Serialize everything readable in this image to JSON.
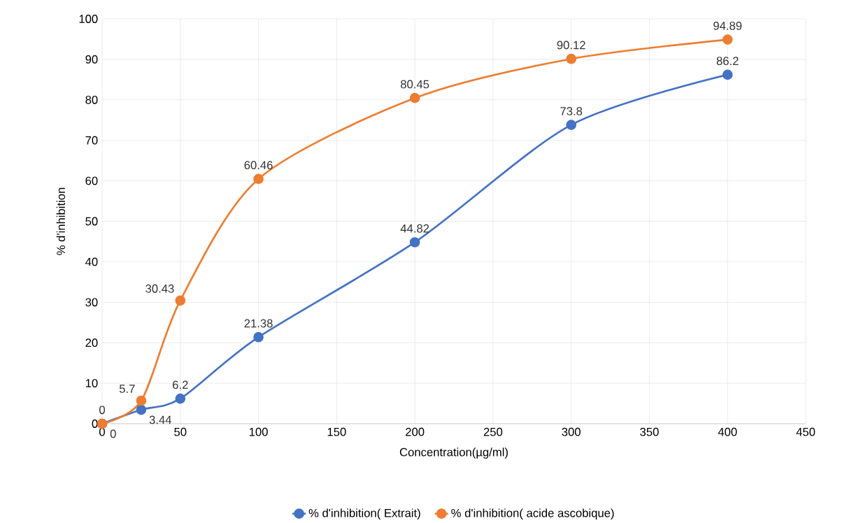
{
  "chart_data": {
    "type": "line",
    "xlabel": "Concentration(µg/ml)",
    "ylabel": "% d'inhibition",
    "x": [
      0,
      25,
      50,
      100,
      200,
      300,
      400
    ],
    "series": [
      {
        "name": "% d'inhibition( Extrait)",
        "color": "#4472c4",
        "values": [
          0,
          3.44,
          6.2,
          21.38,
          44.82,
          73.8,
          86.2
        ]
      },
      {
        "name": "% d'inhibition( acide ascobique)",
        "color": "#ed7d31",
        "values": [
          0,
          5.7,
          30.43,
          60.46,
          80.45,
          90.12,
          94.89
        ]
      }
    ],
    "xlim": [
      0,
      450
    ],
    "xticks": [
      0,
      50,
      100,
      150,
      200,
      250,
      300,
      350,
      400,
      450
    ],
    "ylim": [
      0,
      100
    ],
    "yticks": [
      0,
      10,
      20,
      30,
      40,
      50,
      60,
      70,
      80,
      90,
      100
    ],
    "grid": true,
    "legend": "bottom",
    "marker": "circle",
    "line_style": "solid",
    "data_labels": true
  }
}
